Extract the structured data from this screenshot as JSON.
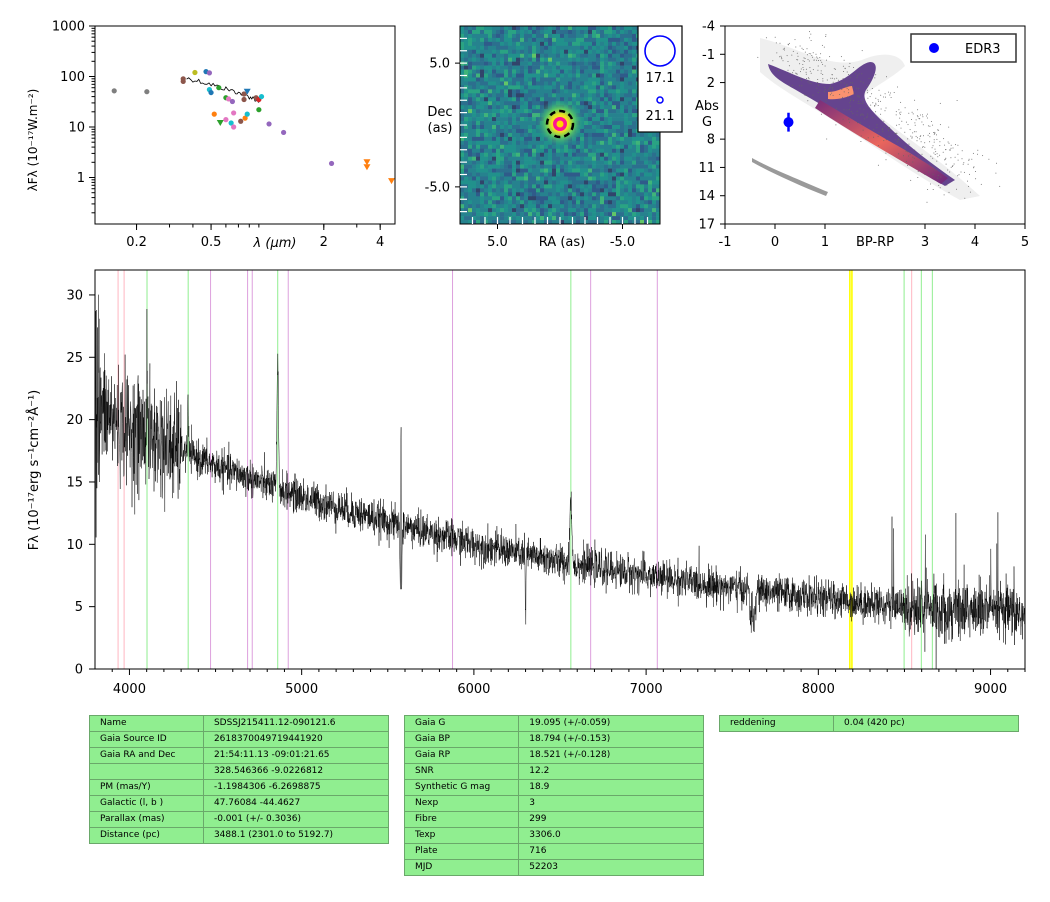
{
  "colors": {
    "background": "#ffffff",
    "spectrum": "#000000",
    "table_bg": "#90ee90",
    "cmd_point": "#0000ff",
    "balmer_line": "#90ee90",
    "calcium_line": "#ffb6c1",
    "helium_line": "#dda0dd",
    "telluric_line": "#ffff00"
  },
  "chart_data": [
    {
      "id": "sed",
      "type": "scatter",
      "xscale": "log",
      "yscale": "log",
      "xlim": [
        0.12,
        4.8
      ],
      "ylim": [
        0.12,
        1000
      ],
      "xlabel": "λ (μm)",
      "ylabel": "λFλ (10⁻¹⁷W.m⁻²)",
      "xticks": [
        {
          "v": 0.2,
          "label": "0.2"
        },
        {
          "v": 0.5,
          "label": "0.5"
        },
        {
          "v": 2,
          "label": "2"
        },
        {
          "v": 4,
          "label": "4"
        }
      ],
      "yticks": [
        {
          "v": 1,
          "label": "1"
        },
        {
          "v": 10,
          "label": "10"
        },
        {
          "v": 100,
          "label": "100"
        },
        {
          "v": 1000,
          "label": "1000"
        }
      ],
      "model_line": [
        [
          0.37,
          92
        ],
        [
          0.45,
          78
        ],
        [
          0.55,
          62
        ],
        [
          0.65,
          52
        ],
        [
          0.75,
          44
        ],
        [
          0.85,
          36
        ],
        [
          0.92,
          32
        ]
      ],
      "points": [
        {
          "x": 0.152,
          "y": 52,
          "color": "#7f7f7f",
          "m": "o"
        },
        {
          "x": 0.227,
          "y": 50,
          "color": "#7f7f7f",
          "m": "o"
        },
        {
          "x": 0.355,
          "y": 90,
          "color": "#8c564b",
          "m": "o"
        },
        {
          "x": 0.355,
          "y": 80,
          "color": "#8c564b",
          "m": "o"
        },
        {
          "x": 0.41,
          "y": 120,
          "color": "#bcbd22",
          "m": "o"
        },
        {
          "x": 0.47,
          "y": 125,
          "color": "#1f77b4",
          "m": "o"
        },
        {
          "x": 0.49,
          "y": 118,
          "color": "#9467bd",
          "m": "o"
        },
        {
          "x": 0.49,
          "y": 55,
          "color": "#17becf",
          "m": "o"
        },
        {
          "x": 0.5,
          "y": 48,
          "color": "#1f77b4",
          "m": "o"
        },
        {
          "x": 0.55,
          "y": 60,
          "color": "#2ca02c",
          "m": "o"
        },
        {
          "x": 0.6,
          "y": 38,
          "color": "#2ca02c",
          "m": "o"
        },
        {
          "x": 0.62,
          "y": 36,
          "color": "#e377c2",
          "m": "o"
        },
        {
          "x": 0.65,
          "y": 32,
          "color": "#9467bd",
          "m": "o"
        },
        {
          "x": 0.75,
          "y": 45,
          "color": "#8c564b",
          "m": "o"
        },
        {
          "x": 0.78,
          "y": 50,
          "color": "#1f77b4",
          "m": "v"
        },
        {
          "x": 0.75,
          "y": 35,
          "color": "#8c564b",
          "m": "o"
        },
        {
          "x": 0.87,
          "y": 38,
          "color": "#8c564b",
          "m": "o"
        },
        {
          "x": 0.9,
          "y": 35,
          "color": "#d62728",
          "m": "o"
        },
        {
          "x": 0.9,
          "y": 22,
          "color": "#2ca02c",
          "m": "o"
        },
        {
          "x": 0.93,
          "y": 40,
          "color": "#17becf",
          "m": "o"
        },
        {
          "x": 0.52,
          "y": 18,
          "color": "#ff7f0e",
          "m": "o"
        },
        {
          "x": 0.56,
          "y": 12,
          "color": "#2ca02c",
          "m": "v"
        },
        {
          "x": 0.6,
          "y": 14,
          "color": "#e377c2",
          "m": "o"
        },
        {
          "x": 0.64,
          "y": 12,
          "color": "#17becf",
          "m": "o"
        },
        {
          "x": 0.66,
          "y": 19,
          "color": "#e377c2",
          "m": "o"
        },
        {
          "x": 0.66,
          "y": 10,
          "color": "#e377c2",
          "m": "o"
        },
        {
          "x": 0.72,
          "y": 13,
          "color": "#8c564b",
          "m": "o"
        },
        {
          "x": 0.76,
          "y": 15,
          "color": "#ff7f0e",
          "m": "o"
        },
        {
          "x": 0.78,
          "y": 18,
          "color": "#17becf",
          "m": "o"
        },
        {
          "x": 1.02,
          "y": 11.5,
          "color": "#9467bd",
          "m": "o"
        },
        {
          "x": 1.22,
          "y": 7.8,
          "color": "#9467bd",
          "m": "o"
        },
        {
          "x": 2.2,
          "y": 1.9,
          "color": "#9467bd",
          "m": "o"
        },
        {
          "x": 3.4,
          "y": 2.0,
          "color": "#ff7f0e",
          "m": "v"
        },
        {
          "x": 3.4,
          "y": 1.6,
          "color": "#ff7f0e",
          "m": "v"
        },
        {
          "x": 4.6,
          "y": 0.85,
          "color": "#ff7f0e",
          "m": "v"
        }
      ]
    },
    {
      "id": "image",
      "type": "heatmap",
      "xlabel": "RA (as)",
      "ylabel_lines": [
        "Dec",
        "(as)"
      ],
      "xlim": [
        8.0,
        -8.0
      ],
      "ylim": [
        -8.0,
        8.0
      ],
      "xticks": [
        {
          "v": 5.0,
          "label": "5.0"
        },
        {
          "v": -5.0,
          "label": "-5.0"
        }
      ],
      "yticks": [
        {
          "v": 5.0,
          "label": "5.0"
        },
        {
          "v": -5.0,
          "label": "-5.0"
        }
      ],
      "source": {
        "x": 0.0,
        "y": 0.0
      },
      "legend": [
        {
          "label": "17.1",
          "size": "large"
        },
        {
          "label": "21.1",
          "size": "small"
        }
      ]
    },
    {
      "id": "cmd",
      "type": "scatter",
      "xlim": [
        -1,
        5
      ],
      "ylim": [
        17,
        -4
      ],
      "xlabel": "BP-RP",
      "ylabel_lines": [
        "Abs",
        "G"
      ],
      "xticks": [
        -1,
        0,
        1,
        3,
        4,
        5
      ],
      "yticks": [
        -4,
        -1,
        2,
        8,
        11,
        14,
        17
      ],
      "legend": [
        {
          "label": "EDR3",
          "color": "#0000ff"
        }
      ],
      "star": {
        "x": 0.27,
        "y": 6.2,
        "yerr": 1.0
      }
    },
    {
      "id": "spectrum",
      "type": "line",
      "xlim": [
        3800,
        9200
      ],
      "ylim": [
        0,
        32
      ],
      "ylabel": "Fλ (10⁻¹⁷erg s⁻¹cm⁻²Å⁻¹)",
      "xticks": [
        4000,
        5000,
        6000,
        7000,
        8000,
        9000
      ],
      "yticks": [
        0,
        5,
        10,
        15,
        20,
        25,
        30
      ],
      "lines": [
        {
          "x": 3934,
          "kind": "ca"
        },
        {
          "x": 3969,
          "kind": "ca"
        },
        {
          "x": 4102,
          "kind": "h"
        },
        {
          "x": 4341,
          "kind": "h"
        },
        {
          "x": 4471,
          "kind": "he"
        },
        {
          "x": 4686,
          "kind": "he"
        },
        {
          "x": 4713,
          "kind": "he"
        },
        {
          "x": 4861,
          "kind": "h"
        },
        {
          "x": 4922,
          "kind": "he"
        },
        {
          "x": 5876,
          "kind": "he"
        },
        {
          "x": 6563,
          "kind": "h"
        },
        {
          "x": 6678,
          "kind": "he"
        },
        {
          "x": 7065,
          "kind": "he"
        },
        {
          "x": 8183,
          "kind": "tel"
        },
        {
          "x": 8195,
          "kind": "tel"
        },
        {
          "x": 8498,
          "kind": "h"
        },
        {
          "x": 8542,
          "kind": "ca"
        },
        {
          "x": 8598,
          "kind": "h"
        },
        {
          "x": 8662,
          "kind": "h"
        }
      ],
      "continuum": [
        [
          3800,
          21
        ],
        [
          4000,
          19.2
        ],
        [
          4500,
          16.3
        ],
        [
          5000,
          13.8
        ],
        [
          5500,
          11.8
        ],
        [
          6000,
          10.0
        ],
        [
          6500,
          8.6
        ],
        [
          7000,
          7.5
        ],
        [
          7500,
          6.5
        ],
        [
          8000,
          5.7
        ],
        [
          8500,
          5.0
        ],
        [
          9000,
          4.6
        ],
        [
          9200,
          4.4
        ]
      ],
      "features": [
        {
          "x": 4102,
          "w": 3,
          "a": 8
        },
        {
          "x": 4340,
          "w": 4,
          "a": 4
        },
        {
          "x": 4861,
          "w": 6,
          "a": 10
        },
        {
          "x": 5577,
          "w": 2,
          "a": 17
        },
        {
          "x": 5577,
          "w": 6,
          "a": -8
        },
        {
          "x": 6300,
          "w": 3,
          "a": -5
        },
        {
          "x": 6563,
          "w": 8,
          "a": 5.5
        }
      ]
    }
  ],
  "tables": [
    {
      "id": "table-object",
      "rows": [
        [
          "Name",
          "SDSSJ215411.12-090121.6"
        ],
        [
          "Gaia Source ID",
          "2618370049719441920"
        ],
        [
          "Gaia RA and Dec",
          "21:54:11.13    -09:01:21.65"
        ],
        [
          "",
          "328.546366    -9.0226812"
        ],
        [
          "PM (mas/Y)",
          "-1.1984306    -6.2698875"
        ],
        [
          "Galactic (l, b )",
          "47.76084    -44.4627"
        ],
        [
          "Parallax (mas)",
          "-0.001 (+/- 0.3036)"
        ],
        [
          "Distance (pc)",
          "3488.1 (2301.0 to 5192.7)"
        ]
      ]
    },
    {
      "id": "table-photometry",
      "rows": [
        [
          "Gaia G",
          "19.095 (+/-0.059)"
        ],
        [
          "Gaia BP",
          "18.794 (+/-0.153)"
        ],
        [
          "Gaia RP",
          "18.521 (+/-0.128)"
        ],
        [
          "SNR",
          "12.2"
        ],
        [
          "Synthetic G mag",
          "18.9"
        ],
        [
          "Nexp",
          "3"
        ],
        [
          "Fibre",
          "299"
        ],
        [
          "Texp",
          "3306.0"
        ],
        [
          "Plate",
          "716"
        ],
        [
          "MJD",
          "52203"
        ]
      ]
    },
    {
      "id": "table-reddening",
      "rows": [
        [
          "reddening",
          "0.04 (420 pc)"
        ]
      ]
    }
  ]
}
